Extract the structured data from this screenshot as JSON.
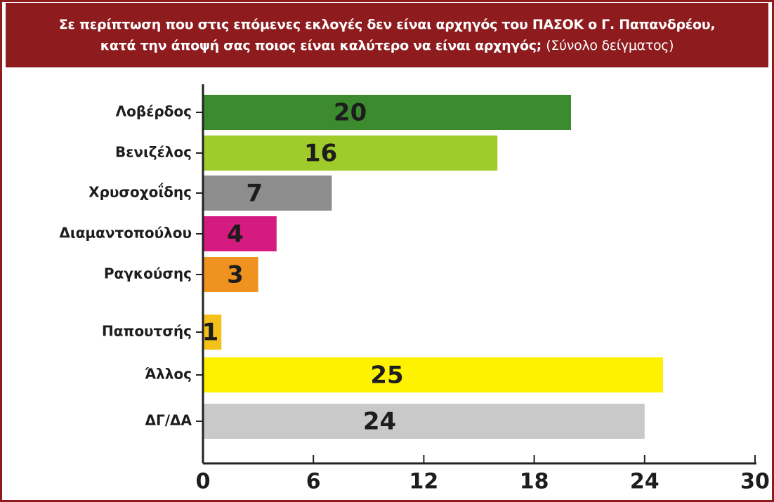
{
  "chart_data": {
    "type": "bar",
    "orientation": "horizontal",
    "title": [
      "Σε περίπτωση που στις επόμενες εκλογές δεν είναι αρχηγός του ΠΑΣΟΚ ο Γ. Παπανδρέου,",
      "κατά την άποψή σας ποιος είναι καλύτερο να είναι αρχηγός;"
    ],
    "subtitle": "(Σύνολο δείγματος)",
    "categories": [
      "Λοβέρδος",
      "Βενιζέλος",
      "Χρυσοχοΐδης",
      "Διαμαντοπούλου",
      "Ραγκούσης",
      "Παπουτσής",
      "Άλλος",
      "ΔΓ/ΔΑ"
    ],
    "values": [
      20,
      16,
      7,
      4,
      3,
      1,
      25,
      24
    ],
    "colors": [
      "#3c8c2f",
      "#9fcb2b",
      "#8d8d8d",
      "#d51a80",
      "#f0921f",
      "#f3c11a",
      "#fff200",
      "#c9c9c9"
    ],
    "xlim": [
      0,
      30
    ],
    "xticks": [
      0,
      6,
      12,
      18,
      24,
      30
    ]
  }
}
